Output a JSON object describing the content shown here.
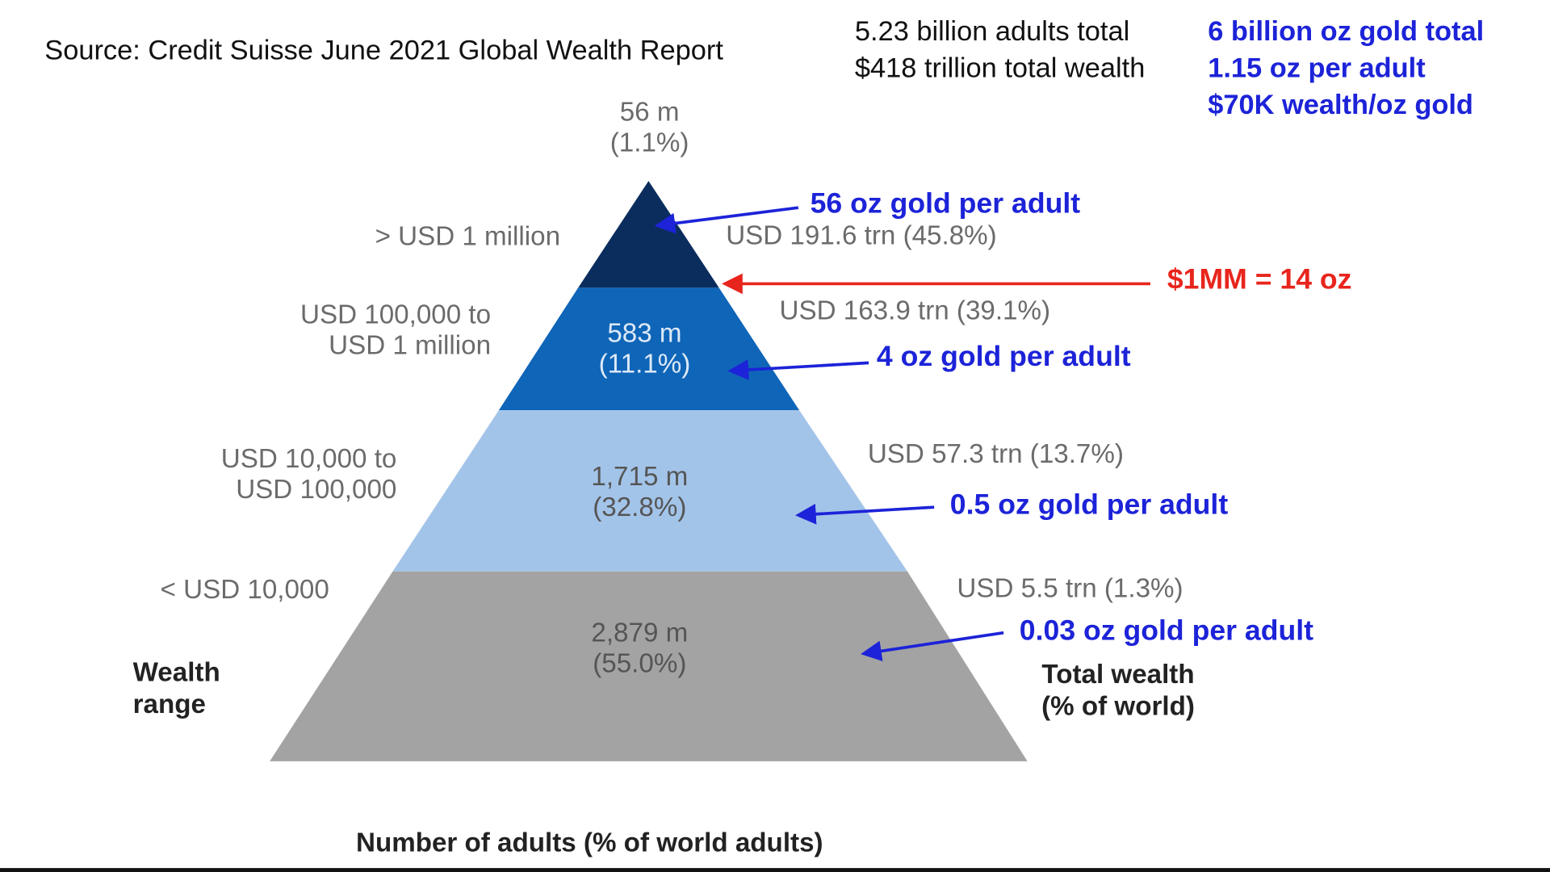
{
  "header": {
    "source": "Source:  Credit Suisse June 2021 Global Wealth Report",
    "totals": [
      "5.23 billion adults total",
      "$418 trillion total wealth"
    ],
    "gold_stats": [
      "6 billion oz gold total",
      "1.15 oz per adult",
      "$70K wealth/oz gold"
    ]
  },
  "pyramid": {
    "tiers": [
      {
        "range": [
          "> USD 1 million"
        ],
        "adults": "56 m",
        "share": "(1.1%)",
        "wealth": "USD 191.6 trn (45.8%)",
        "gold": "56 oz gold per adult",
        "color": "#0b2d5e"
      },
      {
        "range": [
          "USD 100,000 to",
          "USD 1 million"
        ],
        "adults": "583 m",
        "share": "(11.1%)",
        "wealth": "USD 163.9 trn (39.1%)",
        "gold": "4 oz gold per adult",
        "color": "#0f65b8"
      },
      {
        "range": [
          "USD 10,000 to",
          "USD 100,000"
        ],
        "adults": "1,715 m",
        "share": "(32.8%)",
        "wealth": "USD 57.3 trn (13.7%)",
        "gold": "0.5 oz gold per adult",
        "color": "#a3c4e9"
      },
      {
        "range": [
          "< USD 10,000"
        ],
        "adults": "2,879 m",
        "share": "(55.0%)",
        "wealth": "USD 5.5 trn (1.3%)",
        "gold": "0.03 oz gold per adult",
        "color": "#a3a3a3"
      }
    ],
    "threshold_note": "$1MM = 14 oz",
    "left_axis": [
      "Wealth",
      "range"
    ],
    "right_axis": [
      "Total wealth",
      "(% of world)"
    ],
    "bottom_axis": "Number of adults (% of world adults)"
  },
  "colors": {
    "annotation_blue": "#1c23d8",
    "annotation_red": "#e8251c"
  }
}
